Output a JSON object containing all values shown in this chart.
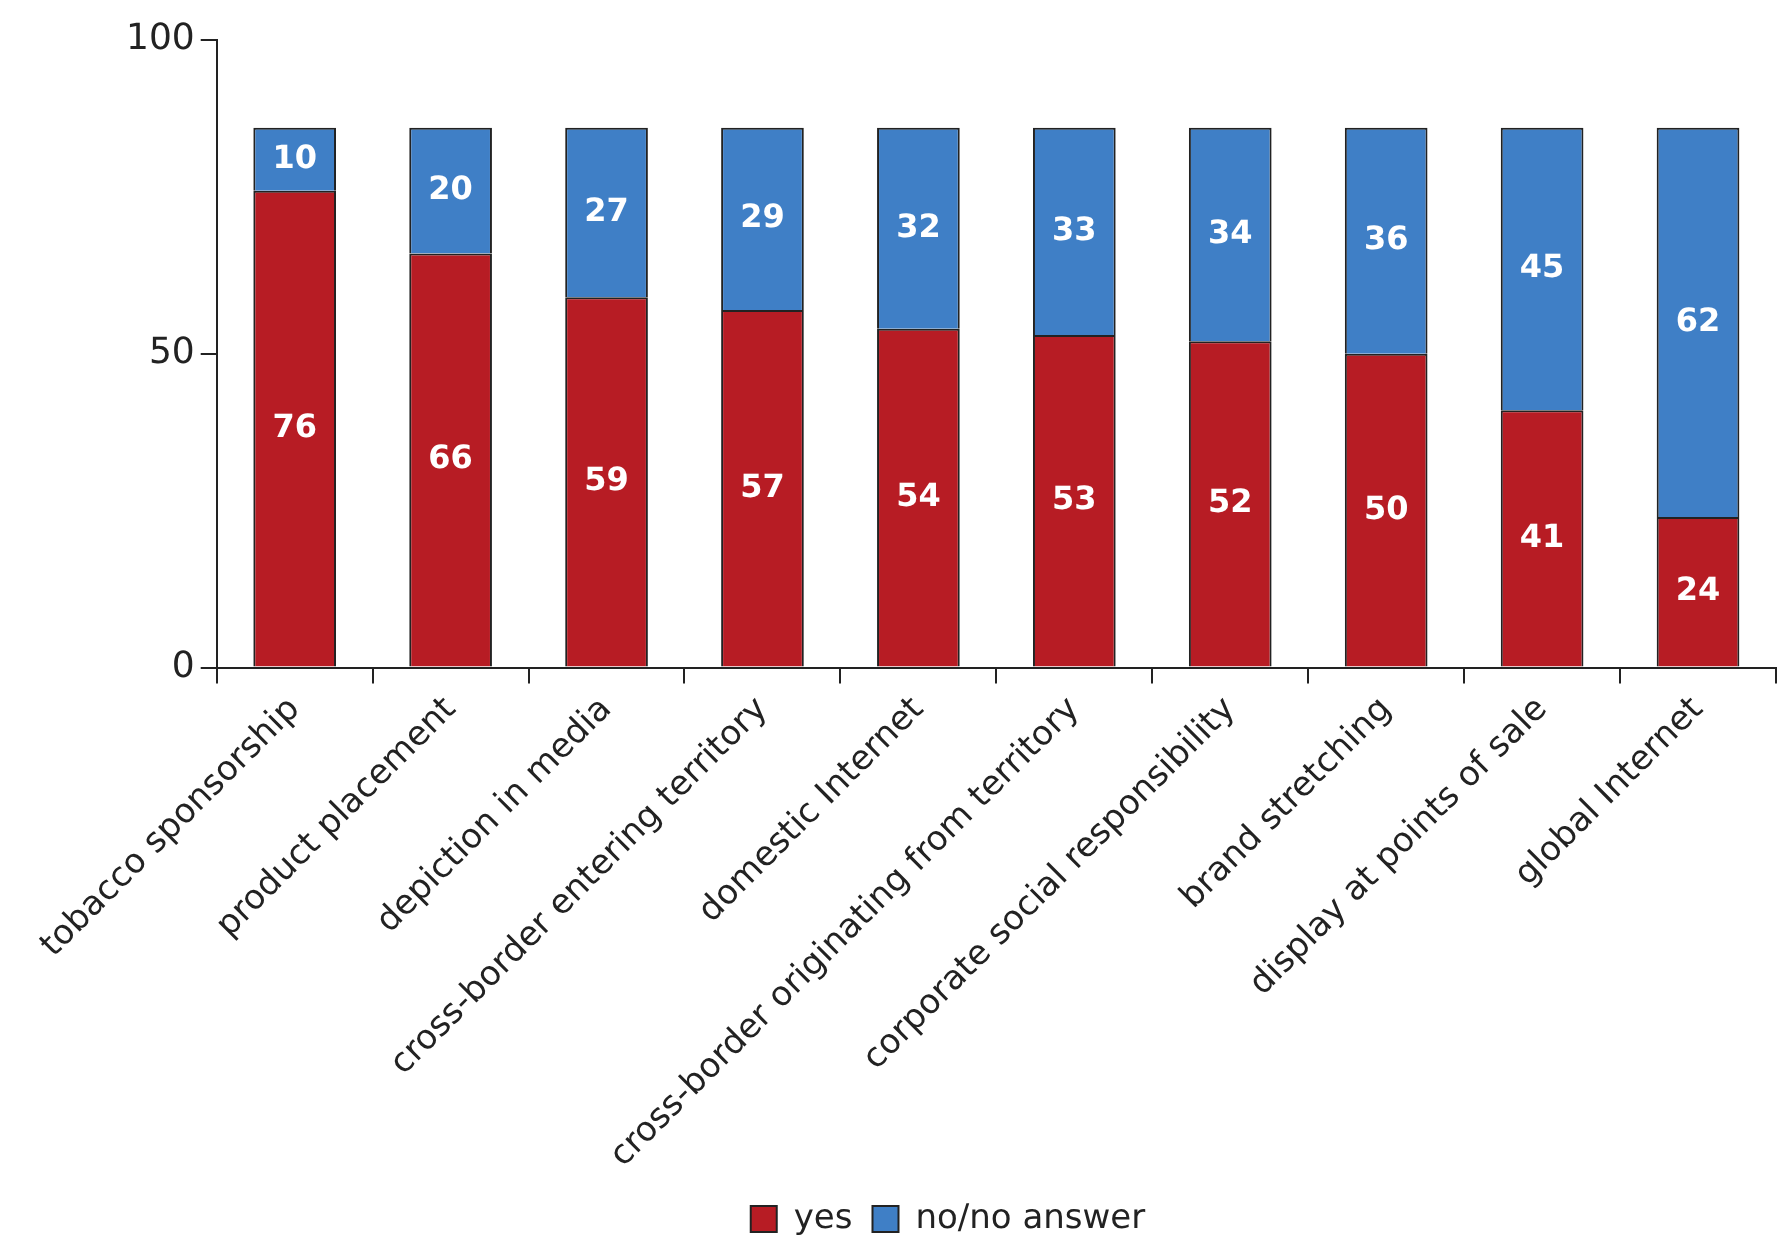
{
  "chart_data": {
    "type": "bar",
    "stacked": true,
    "categories": [
      "tobacco sponsorship",
      "product placement",
      "depiction in media",
      "cross-border entering territory",
      "domestic Internet",
      "cross-border originating from territory",
      "corporate social responsibility",
      "brand stretching",
      "display at points of sale",
      "global Internet"
    ],
    "series": [
      {
        "name": "yes",
        "color": "#b71c24",
        "values": [
          76,
          66,
          59,
          57,
          54,
          53,
          52,
          50,
          41,
          24
        ]
      },
      {
        "name": "no/no answer",
        "color": "#3f7fc6",
        "values": [
          10,
          20,
          27,
          29,
          32,
          33,
          34,
          36,
          45,
          62
        ]
      }
    ],
    "ylim": [
      0,
      100
    ],
    "yticks": [
      0,
      50,
      100
    ],
    "grid": false,
    "legend": "bottom",
    "data_labels": true
  }
}
